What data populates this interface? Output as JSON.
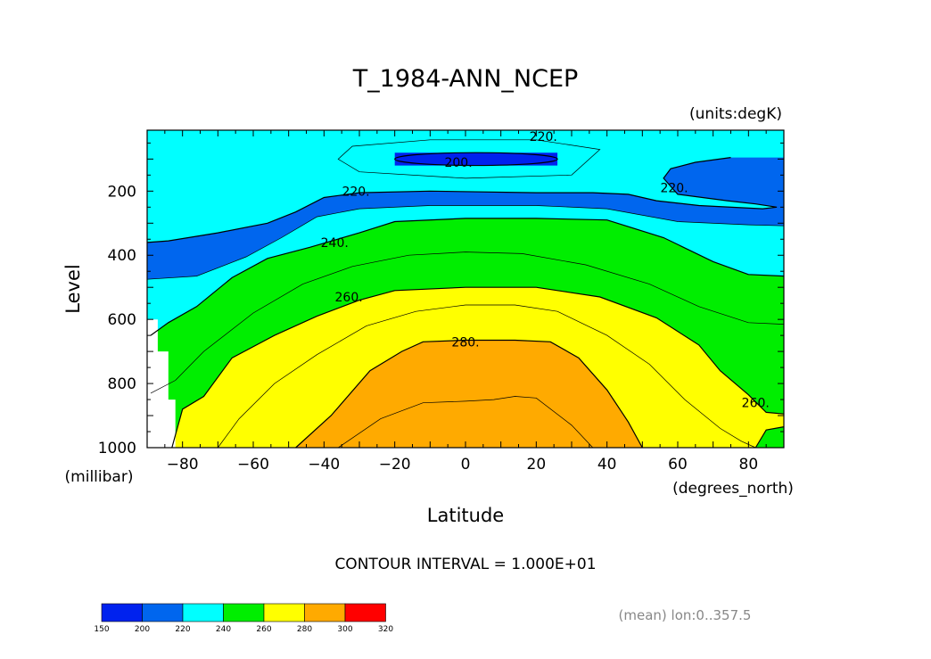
{
  "chart_data": {
    "type": "heatmap",
    "plot_kind": "filled contour, latitude-pressure cross section",
    "title": "T_1984-ANN_NCEP",
    "units_label": "(units:degK)",
    "xlabel": "Latitude",
    "x_units": "(degrees_north)",
    "ylabel": "Level",
    "y_units": "(millibar)",
    "xlim": [
      -90,
      90
    ],
    "ylim": [
      1000,
      10
    ],
    "y_inverted": true,
    "x_ticks": [
      -80,
      -60,
      -40,
      -20,
      0,
      20,
      40,
      60,
      80
    ],
    "y_ticks": [
      200,
      400,
      600,
      800,
      1000
    ],
    "contour_interval_label": "CONTOUR INTERVAL = 1.000E+01",
    "footnote": "(mean) lon:0..357.5",
    "colorbar": {
      "levels": [
        150,
        200,
        220,
        240,
        260,
        280,
        300,
        320
      ],
      "colors": [
        "#0022ee",
        "#0066ee",
        "#00ffff",
        "#00ee00",
        "#ffff00",
        "#ffaa00",
        "#ff0000"
      ]
    },
    "contour_labels": [
      {
        "text": "220.",
        "lat": 22,
        "p": 30
      },
      {
        "text": "200.",
        "lat": -2,
        "p": 110
      },
      {
        "text": "220.",
        "lat": -31,
        "p": 200
      },
      {
        "text": "220.",
        "lat": 59,
        "p": 190
      },
      {
        "text": "240.",
        "lat": -37,
        "p": 360
      },
      {
        "text": "260.",
        "lat": -33,
        "p": 530
      },
      {
        "text": "280.",
        "lat": 0,
        "p": 670
      },
      {
        "text": "260.",
        "lat": 82,
        "p": 860
      }
    ],
    "isotherms": {
      "t200_box": [
        [
          -20,
          80
        ],
        [
          26,
          80
        ],
        [
          26,
          120
        ],
        [
          -20,
          120
        ]
      ],
      "t210": [
        [
          -32,
          60
        ],
        [
          -10,
          40
        ],
        [
          20,
          40
        ],
        [
          38,
          70
        ],
        [
          30,
          150
        ],
        [
          0,
          160
        ],
        [
          -30,
          140
        ],
        [
          -36,
          100
        ]
      ],
      "t220_band": [
        [
          -90,
          360
        ],
        [
          -84,
          355
        ],
        [
          -70,
          330
        ],
        [
          -56,
          300
        ],
        [
          -48,
          265
        ],
        [
          -40,
          220
        ],
        [
          -30,
          205
        ],
        [
          -10,
          200
        ],
        [
          20,
          205
        ],
        [
          36,
          205
        ],
        [
          46,
          210
        ],
        [
          54,
          230
        ],
        [
          66,
          245
        ],
        [
          84,
          255
        ],
        [
          88,
          250
        ],
        [
          82,
          240
        ],
        [
          74,
          230
        ],
        [
          60,
          210
        ],
        [
          56,
          160
        ],
        [
          58,
          130
        ],
        [
          65,
          110
        ],
        [
          75,
          95
        ],
        [
          90,
          95
        ],
        [
          90,
          10
        ],
        [
          -90,
          10
        ]
      ],
      "t230": [
        [
          -90,
          475
        ],
        [
          -76,
          465
        ],
        [
          -62,
          405
        ],
        [
          -52,
          345
        ],
        [
          -42,
          280
        ],
        [
          -30,
          255
        ],
        [
          -10,
          245
        ],
        [
          20,
          245
        ],
        [
          40,
          255
        ],
        [
          60,
          295
        ],
        [
          80,
          305
        ],
        [
          90,
          308
        ]
      ],
      "t240": [
        [
          -89,
          650
        ],
        [
          -84,
          610
        ],
        [
          -76,
          560
        ],
        [
          -66,
          470
        ],
        [
          -56,
          410
        ],
        [
          -44,
          375
        ],
        [
          -30,
          330
        ],
        [
          -20,
          295
        ],
        [
          0,
          285
        ],
        [
          20,
          285
        ],
        [
          40,
          290
        ],
        [
          56,
          345
        ],
        [
          70,
          420
        ],
        [
          80,
          460
        ],
        [
          90,
          465
        ]
      ],
      "t250": [
        [
          -89,
          830
        ],
        [
          -82,
          790
        ],
        [
          -74,
          700
        ],
        [
          -60,
          580
        ],
        [
          -46,
          490
        ],
        [
          -32,
          435
        ],
        [
          -16,
          400
        ],
        [
          0,
          390
        ],
        [
          16,
          395
        ],
        [
          34,
          430
        ],
        [
          52,
          490
        ],
        [
          66,
          560
        ],
        [
          80,
          610
        ],
        [
          90,
          615
        ]
      ],
      "t260": [
        [
          -83,
          1000
        ],
        [
          -80,
          880
        ],
        [
          -74,
          840
        ],
        [
          -66,
          720
        ],
        [
          -54,
          650
        ],
        [
          -42,
          590
        ],
        [
          -30,
          540
        ],
        [
          -20,
          510
        ],
        [
          0,
          500
        ],
        [
          20,
          500
        ],
        [
          38,
          530
        ],
        [
          54,
          595
        ],
        [
          66,
          680
        ],
        [
          72,
          760
        ],
        [
          80,
          835
        ],
        [
          85,
          890
        ],
        [
          90,
          895
        ]
      ],
      "t270": [
        [
          -70,
          1000
        ],
        [
          -64,
          910
        ],
        [
          -54,
          800
        ],
        [
          -42,
          710
        ],
        [
          -28,
          620
        ],
        [
          -14,
          575
        ],
        [
          0,
          555
        ],
        [
          14,
          555
        ],
        [
          26,
          575
        ],
        [
          40,
          650
        ],
        [
          52,
          740
        ],
        [
          62,
          850
        ],
        [
          72,
          940
        ],
        [
          78,
          980
        ],
        [
          82,
          1000
        ]
      ],
      "t280": [
        [
          -48,
          1000
        ],
        [
          -38,
          900
        ],
        [
          -27,
          760
        ],
        [
          -18,
          700
        ],
        [
          -12,
          670
        ],
        [
          0,
          665
        ],
        [
          14,
          665
        ],
        [
          24,
          670
        ],
        [
          32,
          720
        ],
        [
          40,
          820
        ],
        [
          46,
          920
        ],
        [
          50,
          1000
        ]
      ],
      "t290": [
        [
          -36,
          1000
        ],
        [
          -24,
          910
        ],
        [
          -12,
          860
        ],
        [
          0,
          855
        ],
        [
          8,
          850
        ],
        [
          14,
          840
        ],
        [
          20,
          845
        ],
        [
          30,
          930
        ],
        [
          36,
          1000
        ]
      ],
      "t250_north_pocket": [
        [
          82,
          1000
        ],
        [
          85,
          945
        ],
        [
          90,
          935
        ],
        [
          90,
          1000
        ]
      ]
    },
    "missing_region": [
      [
        -90,
        600
      ],
      [
        -87,
        600
      ],
      [
        -87,
        700
      ],
      [
        -84,
        700
      ],
      [
        -84,
        850
      ],
      [
        -82,
        850
      ],
      [
        -82,
        1000
      ],
      [
        -90,
        1000
      ]
    ]
  }
}
